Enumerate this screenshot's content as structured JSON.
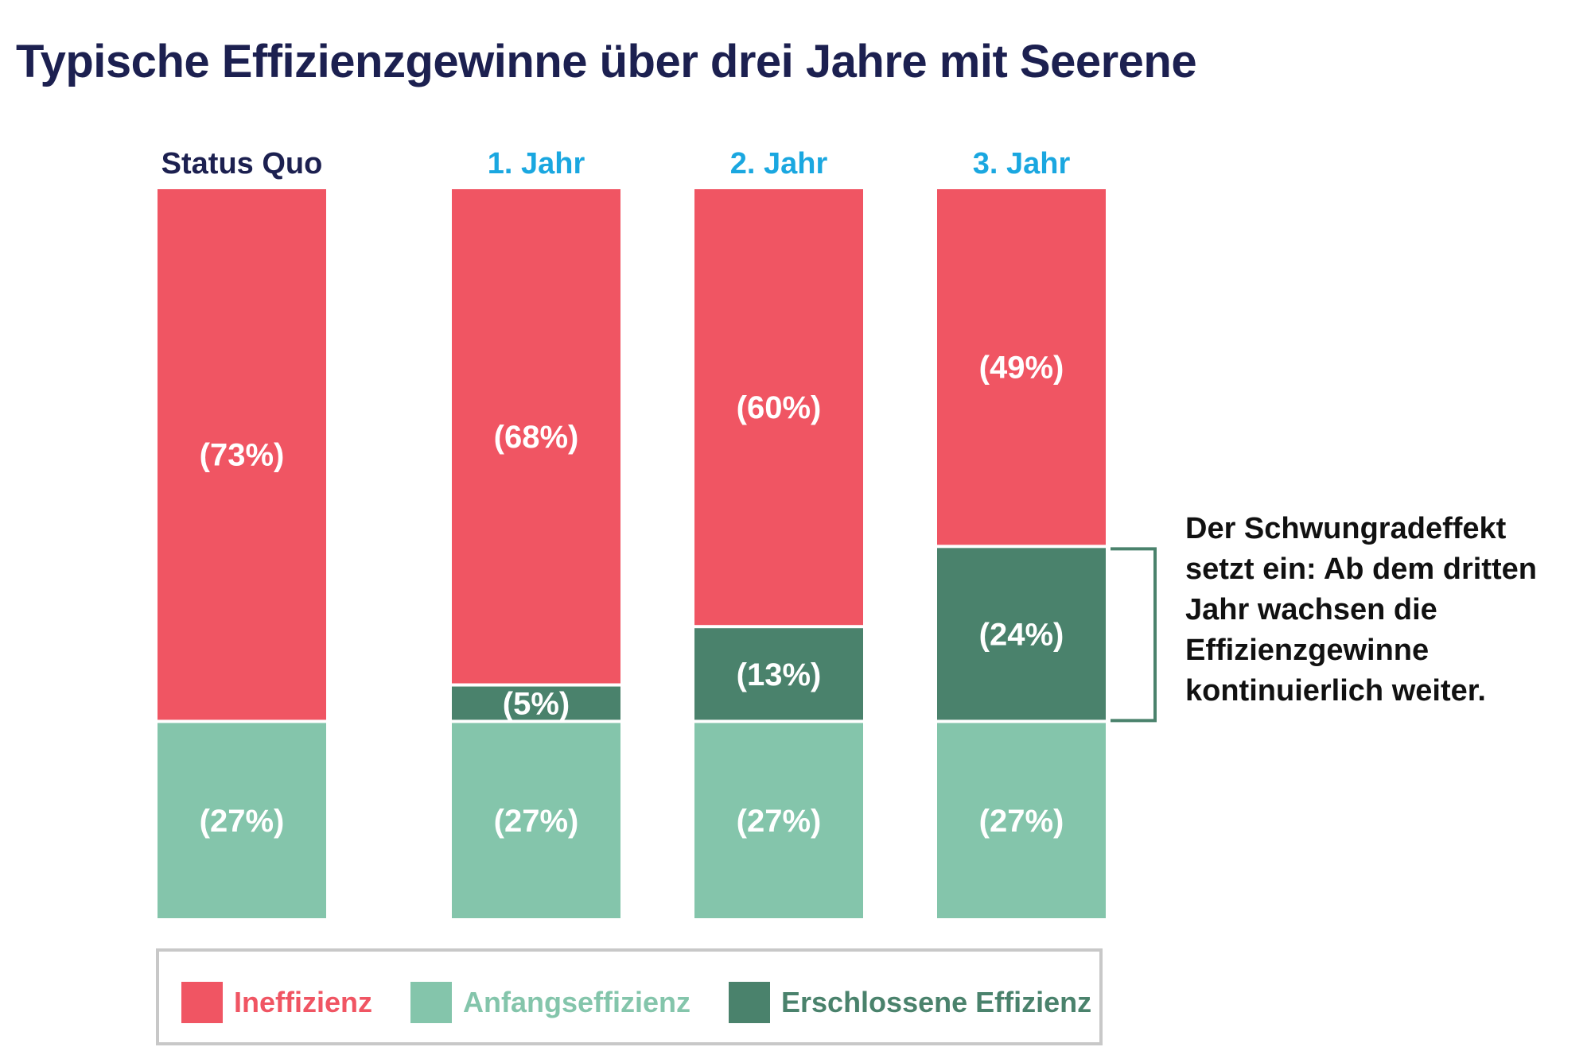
{
  "title": "Typische Effizienzgewinne über drei Jahre mit Seerene",
  "colors": {
    "ineffizienz": "#f05563",
    "anfangseffizienz": "#84c5ab",
    "erschlossen": "#4a826c",
    "title": "#1c2050",
    "year_label": "#1aa7e0",
    "status_label": "#1c2050",
    "legend_border": "#c8c8c8"
  },
  "chart_data": {
    "type": "bar",
    "stacked": true,
    "normalized": true,
    "categories": [
      "Status Quo",
      "1. Jahr",
      "2. Jahr",
      "3. Jahr"
    ],
    "series": [
      {
        "name": "Anfangseffizienz",
        "color_key": "anfangseffizienz",
        "values": [
          27,
          27,
          27,
          27
        ],
        "labels": [
          "(27%)",
          "(27%)",
          "(27%)",
          "(27%)"
        ]
      },
      {
        "name": "Erschlossene Effizienz",
        "color_key": "erschlossen",
        "values": [
          0,
          5,
          13,
          24
        ],
        "labels": [
          "",
          "(5%)",
          "(13%)",
          "(24%)"
        ]
      },
      {
        "name": "Ineffizienz",
        "color_key": "ineffizienz",
        "values": [
          73,
          68,
          60,
          49
        ],
        "labels": [
          "(73%)",
          "(68%)",
          "(60%)",
          "(49%)"
        ]
      }
    ],
    "ylim": [
      0,
      100
    ],
    "axes_visible": false,
    "grid": false,
    "legend_position": "bottom",
    "annotation": {
      "target_category": "3. Jahr",
      "target_series": "Erschlossene Effizienz"
    }
  },
  "annotation": {
    "text": "Der Schwungradeffekt setzt ein: Ab dem dritten Jahr wachsen die Effizienzgewinne kontinuierlich weiter."
  },
  "legend": {
    "items": [
      {
        "label": "Ineffizienz",
        "color_key": "ineffizienz"
      },
      {
        "label": "Anfangseffizienz",
        "color_key": "anfangseffizienz"
      },
      {
        "label": "Erschlossene Effizienz",
        "color_key": "erschlossen"
      }
    ]
  }
}
